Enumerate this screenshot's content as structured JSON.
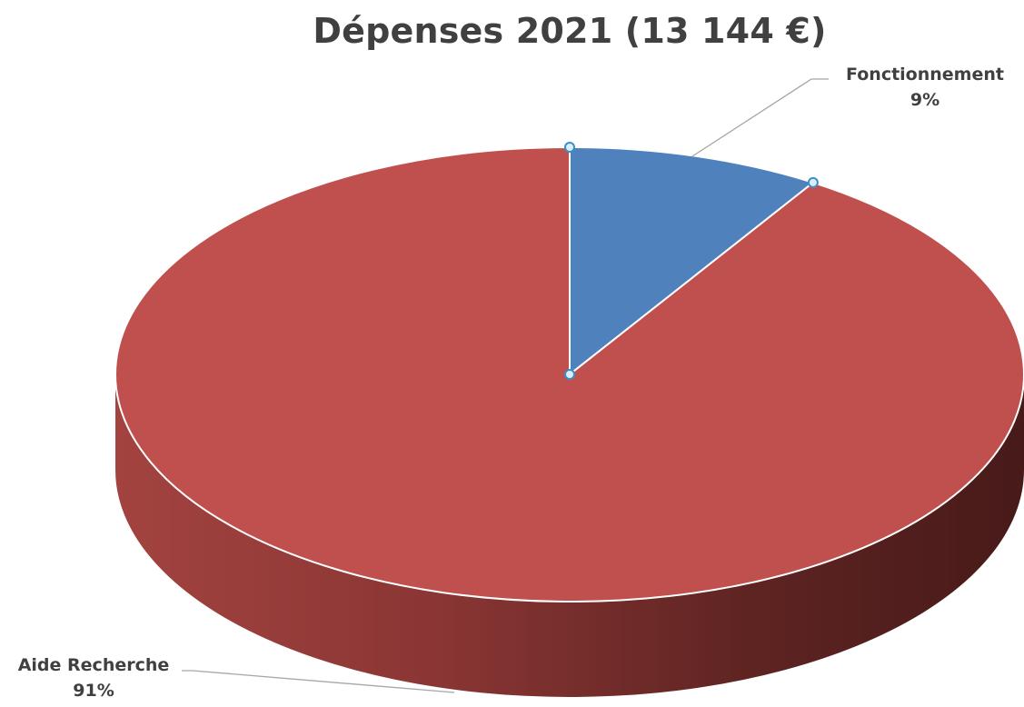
{
  "chart_data": {
    "type": "pie",
    "style": "3d",
    "title": "Dépenses 2021 (13 144 €)",
    "slices": [
      {
        "name": "Fonctionnement",
        "value": 9,
        "label": "9%",
        "color": "#4f81bd",
        "selected": true
      },
      {
        "name": "Aide Recherche",
        "value": 91,
        "label": "91%",
        "color": "#c0504d",
        "selected": false
      }
    ],
    "start_angle_deg": 0,
    "direction": "clockwise",
    "legend": "none",
    "data_labels": "outside-with-leader-lines"
  }
}
